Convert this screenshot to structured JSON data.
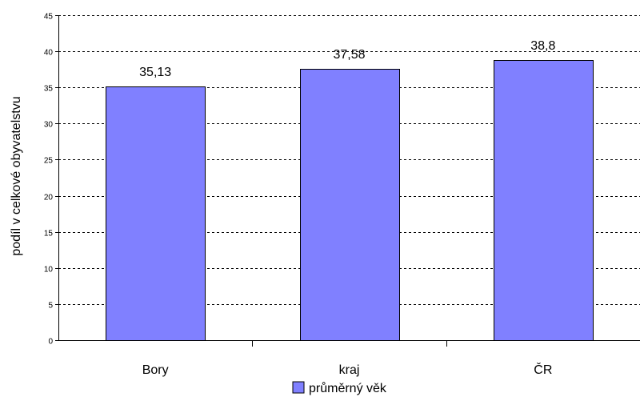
{
  "chart_data": {
    "type": "bar",
    "categories": [
      "Bory",
      "kraj",
      "ČR"
    ],
    "series": [
      {
        "name": "průměrný věk",
        "values": [
          35.13,
          37.58,
          38.8
        ],
        "labels": [
          "35,13",
          "37,58",
          "38,8"
        ]
      }
    ],
    "title": "",
    "xlabel": "",
    "ylabel": "podíl v celkové obyvatelstvu",
    "ylim": [
      0,
      45
    ],
    "yticks": [
      0,
      5,
      10,
      15,
      20,
      25,
      30,
      35,
      40,
      45
    ],
    "grid": true,
    "legend": "bottom",
    "colors": {
      "bar": "#8080ff",
      "bar_stroke": "#000000",
      "grid": "#000000"
    }
  }
}
